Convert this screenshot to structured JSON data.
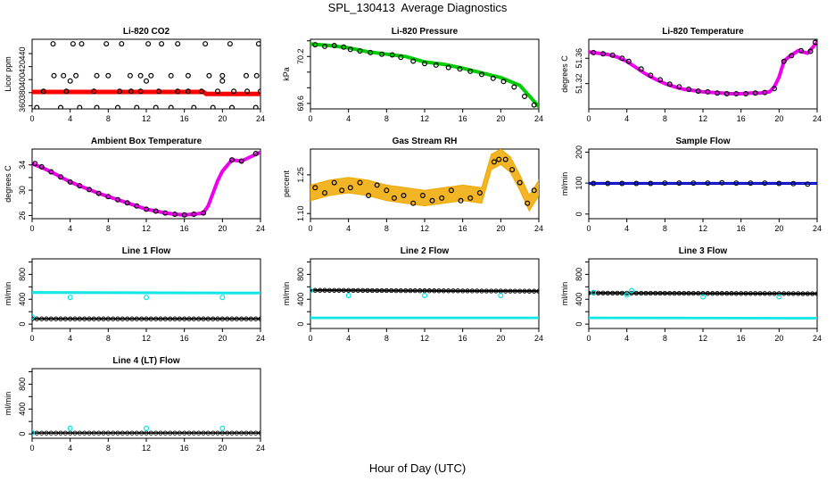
{
  "page_title": "SPL_130413  Average Diagnostics",
  "x_caption": "Hour of Day (UTC)",
  "chart_data": [
    {
      "type": "scatter",
      "title": "Li-820 CO2",
      "ylabel": "Licor ppm",
      "xlim": [
        0,
        24
      ],
      "ylim": [
        355,
        462
      ],
      "xticks": [
        0,
        4,
        8,
        12,
        16,
        20,
        24
      ],
      "yticks": [
        360,
        380,
        400,
        420,
        440
      ],
      "grid": false,
      "series": [
        {
          "color": "#ff0000",
          "style": "band",
          "x": [
            0,
            18,
            18.3,
            24
          ],
          "y": [
            381,
            381,
            378,
            378
          ]
        },
        {
          "color": "#000000",
          "style": "points",
          "x": [
            0.5,
            3,
            5,
            6.8,
            9,
            11,
            13,
            14.6,
            17,
            19,
            21,
            23.5,
            2.3,
            3.3,
            4.6,
            6.8,
            8,
            10.3,
            11.4,
            12.5,
            14.6,
            16.4,
            18.6,
            20,
            22.5,
            23.6,
            1.2,
            3.6,
            6.5,
            9.2,
            10.4,
            11.4,
            13.3,
            15.3,
            16.4,
            17.8,
            19.5,
            21.2,
            22.6,
            24,
            2.2,
            4.3,
            5.2,
            7.8,
            9.4,
            12.2,
            13.6,
            15.3,
            18.2,
            20.8,
            23.8,
            4,
            12,
            20
          ],
          "y": [
            357,
            357,
            357,
            357,
            357,
            357,
            357,
            357,
            357,
            357,
            357,
            357,
            406,
            406,
            406,
            406,
            406,
            406,
            406,
            406,
            406,
            406,
            406,
            406,
            406,
            406,
            382,
            382,
            382,
            382,
            382,
            382,
            382,
            382,
            382,
            382,
            382,
            382,
            382,
            382,
            455,
            455,
            455,
            455,
            455,
            455,
            455,
            455,
            455,
            455,
            455,
            398,
            398,
            398
          ]
        }
      ]
    },
    {
      "type": "scatter",
      "title": "Li-820 Pressure",
      "ylabel": "kPa",
      "xlim": [
        0,
        24
      ],
      "ylim": [
        69.53,
        70.42
      ],
      "xticks": [
        0,
        4,
        8,
        12,
        16,
        20,
        24
      ],
      "yticks": [
        69.6,
        69.8,
        70.0,
        70.2,
        70.4
      ],
      "ytick_labels": [
        "69.6",
        "",
        "",
        "70.2",
        ""
      ],
      "grid": false,
      "series": [
        {
          "color": "#00cc00",
          "style": "line",
          "x": [
            0,
            2,
            4,
            6,
            8,
            10,
            12,
            14,
            16,
            18,
            20,
            22,
            24
          ],
          "y": [
            70.36,
            70.34,
            70.31,
            70.26,
            70.23,
            70.2,
            70.13,
            70.1,
            70.05,
            69.99,
            69.93,
            69.83,
            69.56
          ]
        },
        {
          "color": "#000000",
          "style": "points",
          "x": [
            0.5,
            1.5,
            2.5,
            3.5,
            4.2,
            5.2,
            6.3,
            7.5,
            8.6,
            9.5,
            10.8,
            12,
            13.2,
            14.5,
            15.7,
            16.8,
            18,
            19.2,
            20.3,
            21.4,
            22.5,
            23.5
          ],
          "y": [
            70.35,
            70.33,
            70.34,
            70.32,
            70.29,
            70.27,
            70.25,
            70.23,
            70.22,
            70.19,
            70.14,
            70.11,
            70.09,
            70.06,
            70.04,
            70.01,
            69.97,
            69.92,
            69.88,
            69.81,
            69.69,
            69.58
          ]
        }
      ]
    },
    {
      "type": "scatter",
      "title": "Li-820 Temperature",
      "ylabel": "degrees C",
      "xlim": [
        0,
        24
      ],
      "ylim": [
        51.28,
        51.39
      ],
      "xticks": [
        0,
        4,
        8,
        12,
        16,
        20,
        24
      ],
      "yticks": [
        51.32,
        51.36
      ],
      "grid": false,
      "series": [
        {
          "color": "#ee00ee",
          "style": "line",
          "x": [
            0,
            1,
            2,
            3,
            4,
            5,
            6,
            7,
            8,
            9,
            10,
            11,
            12,
            13,
            14,
            15,
            16,
            17,
            18,
            19,
            19.5,
            20,
            20.5,
            21,
            22,
            23,
            24
          ],
          "y": [
            51.37,
            51.368,
            51.366,
            51.362,
            51.355,
            51.345,
            51.335,
            51.327,
            51.32,
            51.315,
            51.311,
            51.309,
            51.307,
            51.306,
            51.305,
            51.304,
            51.304,
            51.305,
            51.305,
            51.307,
            51.315,
            51.33,
            51.355,
            51.362,
            51.372,
            51.368,
            51.385
          ]
        },
        {
          "color": "#000000",
          "style": "points",
          "x": [
            0.5,
            1.5,
            2.5,
            3.5,
            4.2,
            5.5,
            6.5,
            7.5,
            8.5,
            9.5,
            10.5,
            11.5,
            12.5,
            13.5,
            14.5,
            15.5,
            16.5,
            17.5,
            18.5,
            19.5,
            20.5,
            21.3,
            22.3,
            23.3,
            23.8
          ],
          "y": [
            51.369,
            51.367,
            51.365,
            51.36,
            51.355,
            51.343,
            51.333,
            51.326,
            51.319,
            51.315,
            51.311,
            51.308,
            51.307,
            51.305,
            51.304,
            51.304,
            51.304,
            51.305,
            51.306,
            51.312,
            51.355,
            51.364,
            51.372,
            51.371,
            51.385
          ]
        }
      ]
    },
    {
      "type": "scatter",
      "title": "Ambient Box Temperature",
      "ylabel": "degrees C",
      "xlim": [
        0,
        24
      ],
      "ylim": [
        25.5,
        36.5
      ],
      "xticks": [
        0,
        4,
        8,
        12,
        16,
        20,
        24
      ],
      "yticks": [
        26,
        30,
        34
      ],
      "ytick_labels": [
        "26",
        "30",
        "34"
      ],
      "minor_yticks": [
        28,
        32
      ],
      "grid": false,
      "series": [
        {
          "color": "#ee00ee",
          "style": "line",
          "x": [
            0,
            1,
            2,
            3,
            4,
            5,
            6,
            7,
            8,
            9,
            10,
            11,
            12,
            13,
            14,
            15,
            16,
            17,
            18,
            18.5,
            19,
            19.5,
            20,
            21,
            22,
            23,
            24
          ],
          "y": [
            34.2,
            33.6,
            32.9,
            32.1,
            31.3,
            30.7,
            30.1,
            29.5,
            29,
            28.5,
            28,
            27.5,
            27,
            26.7,
            26.4,
            26.2,
            26.1,
            26.2,
            26.4,
            27.5,
            29.5,
            31.5,
            33,
            34.8,
            34.6,
            35.3,
            36
          ]
        },
        {
          "color": "#000000",
          "style": "points",
          "x": [
            0.3,
            1,
            2,
            3,
            4,
            5,
            6,
            7,
            8,
            9,
            10,
            11,
            12,
            13,
            14,
            15,
            16,
            17,
            18,
            21,
            22,
            23.5
          ],
          "y": [
            34.2,
            33.7,
            32.9,
            32.1,
            31.3,
            30.7,
            30.1,
            29.5,
            29,
            28.5,
            28,
            27.5,
            27,
            26.7,
            26.4,
            26.2,
            26.1,
            26.2,
            26.4,
            34.8,
            34.6,
            35.8
          ]
        }
      ]
    },
    {
      "type": "scatter",
      "title": "Gas Stream RH",
      "ylabel": "percent",
      "xlim": [
        0,
        24
      ],
      "ylim": [
        1.08,
        1.35
      ],
      "xticks": [
        0,
        4,
        8,
        12,
        16,
        20,
        24
      ],
      "yticks": [
        1.1,
        1.25
      ],
      "ytick_labels": [
        "1.10",
        "1.25"
      ],
      "grid": false,
      "series": [
        {
          "color": "#f0a800",
          "style": "band",
          "x": [
            0,
            2,
            4,
            6,
            8,
            10,
            12,
            14,
            16,
            18,
            19,
            20,
            21,
            22,
            23,
            24
          ],
          "y": [
            1.18,
            1.2,
            1.21,
            1.2,
            1.18,
            1.17,
            1.16,
            1.17,
            1.18,
            1.17,
            1.3,
            1.32,
            1.29,
            1.22,
            1.14,
            1.2
          ],
          "band": 0.06
        },
        {
          "color": "#000000",
          "style": "points",
          "x": [
            0.5,
            1.5,
            2.5,
            3.3,
            4.2,
            5.2,
            6.1,
            7,
            8,
            8.8,
            9.8,
            10.8,
            11.8,
            12.8,
            13.8,
            14.8,
            15.8,
            16.8,
            17.8,
            19.3,
            19.8,
            20.5,
            21.2,
            22,
            22.8,
            23.5
          ],
          "y": [
            1.2,
            1.18,
            1.22,
            1.19,
            1.2,
            1.22,
            1.17,
            1.21,
            1.19,
            1.16,
            1.17,
            1.14,
            1.17,
            1.15,
            1.16,
            1.19,
            1.15,
            1.16,
            1.18,
            1.3,
            1.31,
            1.31,
            1.27,
            1.22,
            1.14,
            1.19
          ]
        }
      ]
    },
    {
      "type": "scatter",
      "title": "Sample Flow",
      "ylabel": "ml/min",
      "xlim": [
        0,
        24
      ],
      "ylim": [
        -15,
        210
      ],
      "xticks": [
        0,
        4,
        8,
        12,
        16,
        20,
        24
      ],
      "yticks": [
        0,
        100,
        200
      ],
      "grid": false,
      "series": [
        {
          "color": "#0000cc",
          "style": "band",
          "x": [
            0,
            24
          ],
          "y": [
            99,
            99
          ],
          "band": 6
        },
        {
          "color": "#000000",
          "style": "points",
          "x": [
            0.5,
            2,
            3.5,
            5,
            6.5,
            8,
            9.5,
            11,
            12.5,
            14,
            15.5,
            17,
            18.5,
            20,
            21.5,
            23
          ],
          "y": [
            99,
            99,
            99,
            99,
            99,
            100,
            100,
            100,
            100,
            101,
            100,
            100,
            100,
            99,
            98,
            97
          ]
        }
      ]
    },
    {
      "type": "scatter",
      "title": "Line 1 Flow",
      "ylabel": "ml/min",
      "xlim": [
        0,
        24
      ],
      "ylim": [
        -70,
        1050
      ],
      "xticks": [
        0,
        4,
        8,
        12,
        16,
        20,
        24
      ],
      "yticks": [
        0,
        200,
        400,
        600,
        800,
        1000
      ],
      "ytick_labels": [
        "0",
        "",
        "400",
        "",
        "800",
        ""
      ],
      "grid": false,
      "series": [
        {
          "color": "#00e5e5",
          "style": "band",
          "x": [
            0,
            24
          ],
          "y": [
            510,
            500
          ],
          "band": 30
        },
        {
          "color": "#000000",
          "style": "band",
          "x": [
            0,
            24
          ],
          "y": [
            85,
            85
          ],
          "band": 12
        },
        {
          "color": "#00e5e5",
          "style": "points",
          "x": [
            0,
            4,
            12,
            20
          ],
          "y": [
            115,
            430,
            430,
            430
          ]
        }
      ]
    },
    {
      "type": "scatter",
      "title": "Line 2 Flow",
      "ylabel": "ml/min",
      "xlim": [
        0,
        24
      ],
      "ylim": [
        -70,
        1050
      ],
      "xticks": [
        0,
        4,
        8,
        12,
        16,
        20,
        24
      ],
      "yticks": [
        0,
        200,
        400,
        600,
        800,
        1000
      ],
      "ytick_labels": [
        "0",
        "",
        "400",
        "",
        "800",
        ""
      ],
      "grid": false,
      "series": [
        {
          "color": "#00e5e5",
          "style": "band",
          "x": [
            0,
            24
          ],
          "y": [
            100,
            100
          ],
          "band": 25
        },
        {
          "color": "#000000",
          "style": "band",
          "x": [
            0,
            24
          ],
          "y": [
            545,
            530
          ],
          "band": 20
        },
        {
          "color": "#00e5e5",
          "style": "points",
          "x": [
            0,
            4,
            12,
            20
          ],
          "y": [
            540,
            460,
            460,
            460
          ]
        }
      ]
    },
    {
      "type": "scatter",
      "title": "Line 3 Flow",
      "ylabel": "ml/min",
      "xlim": [
        0,
        24
      ],
      "ylim": [
        -70,
        1050
      ],
      "xticks": [
        0,
        4,
        8,
        12,
        16,
        20,
        24
      ],
      "yticks": [
        0,
        200,
        400,
        600,
        800,
        1000
      ],
      "ytick_labels": [
        "0",
        "",
        "400",
        "",
        "800",
        ""
      ],
      "grid": false,
      "series": [
        {
          "color": "#00e5e5",
          "style": "band",
          "x": [
            0,
            24
          ],
          "y": [
            100,
            95
          ],
          "band": 25
        },
        {
          "color": "#000000",
          "style": "band",
          "x": [
            0,
            24
          ],
          "y": [
            500,
            490
          ],
          "band": 20
        },
        {
          "color": "#00e5e5",
          "style": "points",
          "x": [
            0.5,
            4,
            4.5,
            12,
            20
          ],
          "y": [
            510,
            470,
            540,
            440,
            440
          ]
        }
      ]
    },
    {
      "type": "scatter",
      "title": "Line 4 (LT) Flow",
      "ylabel": "ml/min",
      "xlim": [
        0,
        24
      ],
      "ylim": [
        -70,
        1050
      ],
      "xticks": [
        0,
        4,
        8,
        12,
        16,
        20,
        24
      ],
      "yticks": [
        0,
        200,
        400,
        600,
        800,
        1000
      ],
      "ytick_labels": [
        "0",
        "",
        "400",
        "",
        "800",
        ""
      ],
      "grid": false,
      "series": [
        {
          "color": "#000000",
          "style": "band",
          "x": [
            0,
            24
          ],
          "y": [
            15,
            15
          ],
          "band": 10
        },
        {
          "color": "#00e5e5",
          "style": "points",
          "x": [
            0,
            4,
            12,
            20
          ],
          "y": [
            20,
            90,
            90,
            90
          ]
        }
      ]
    }
  ]
}
